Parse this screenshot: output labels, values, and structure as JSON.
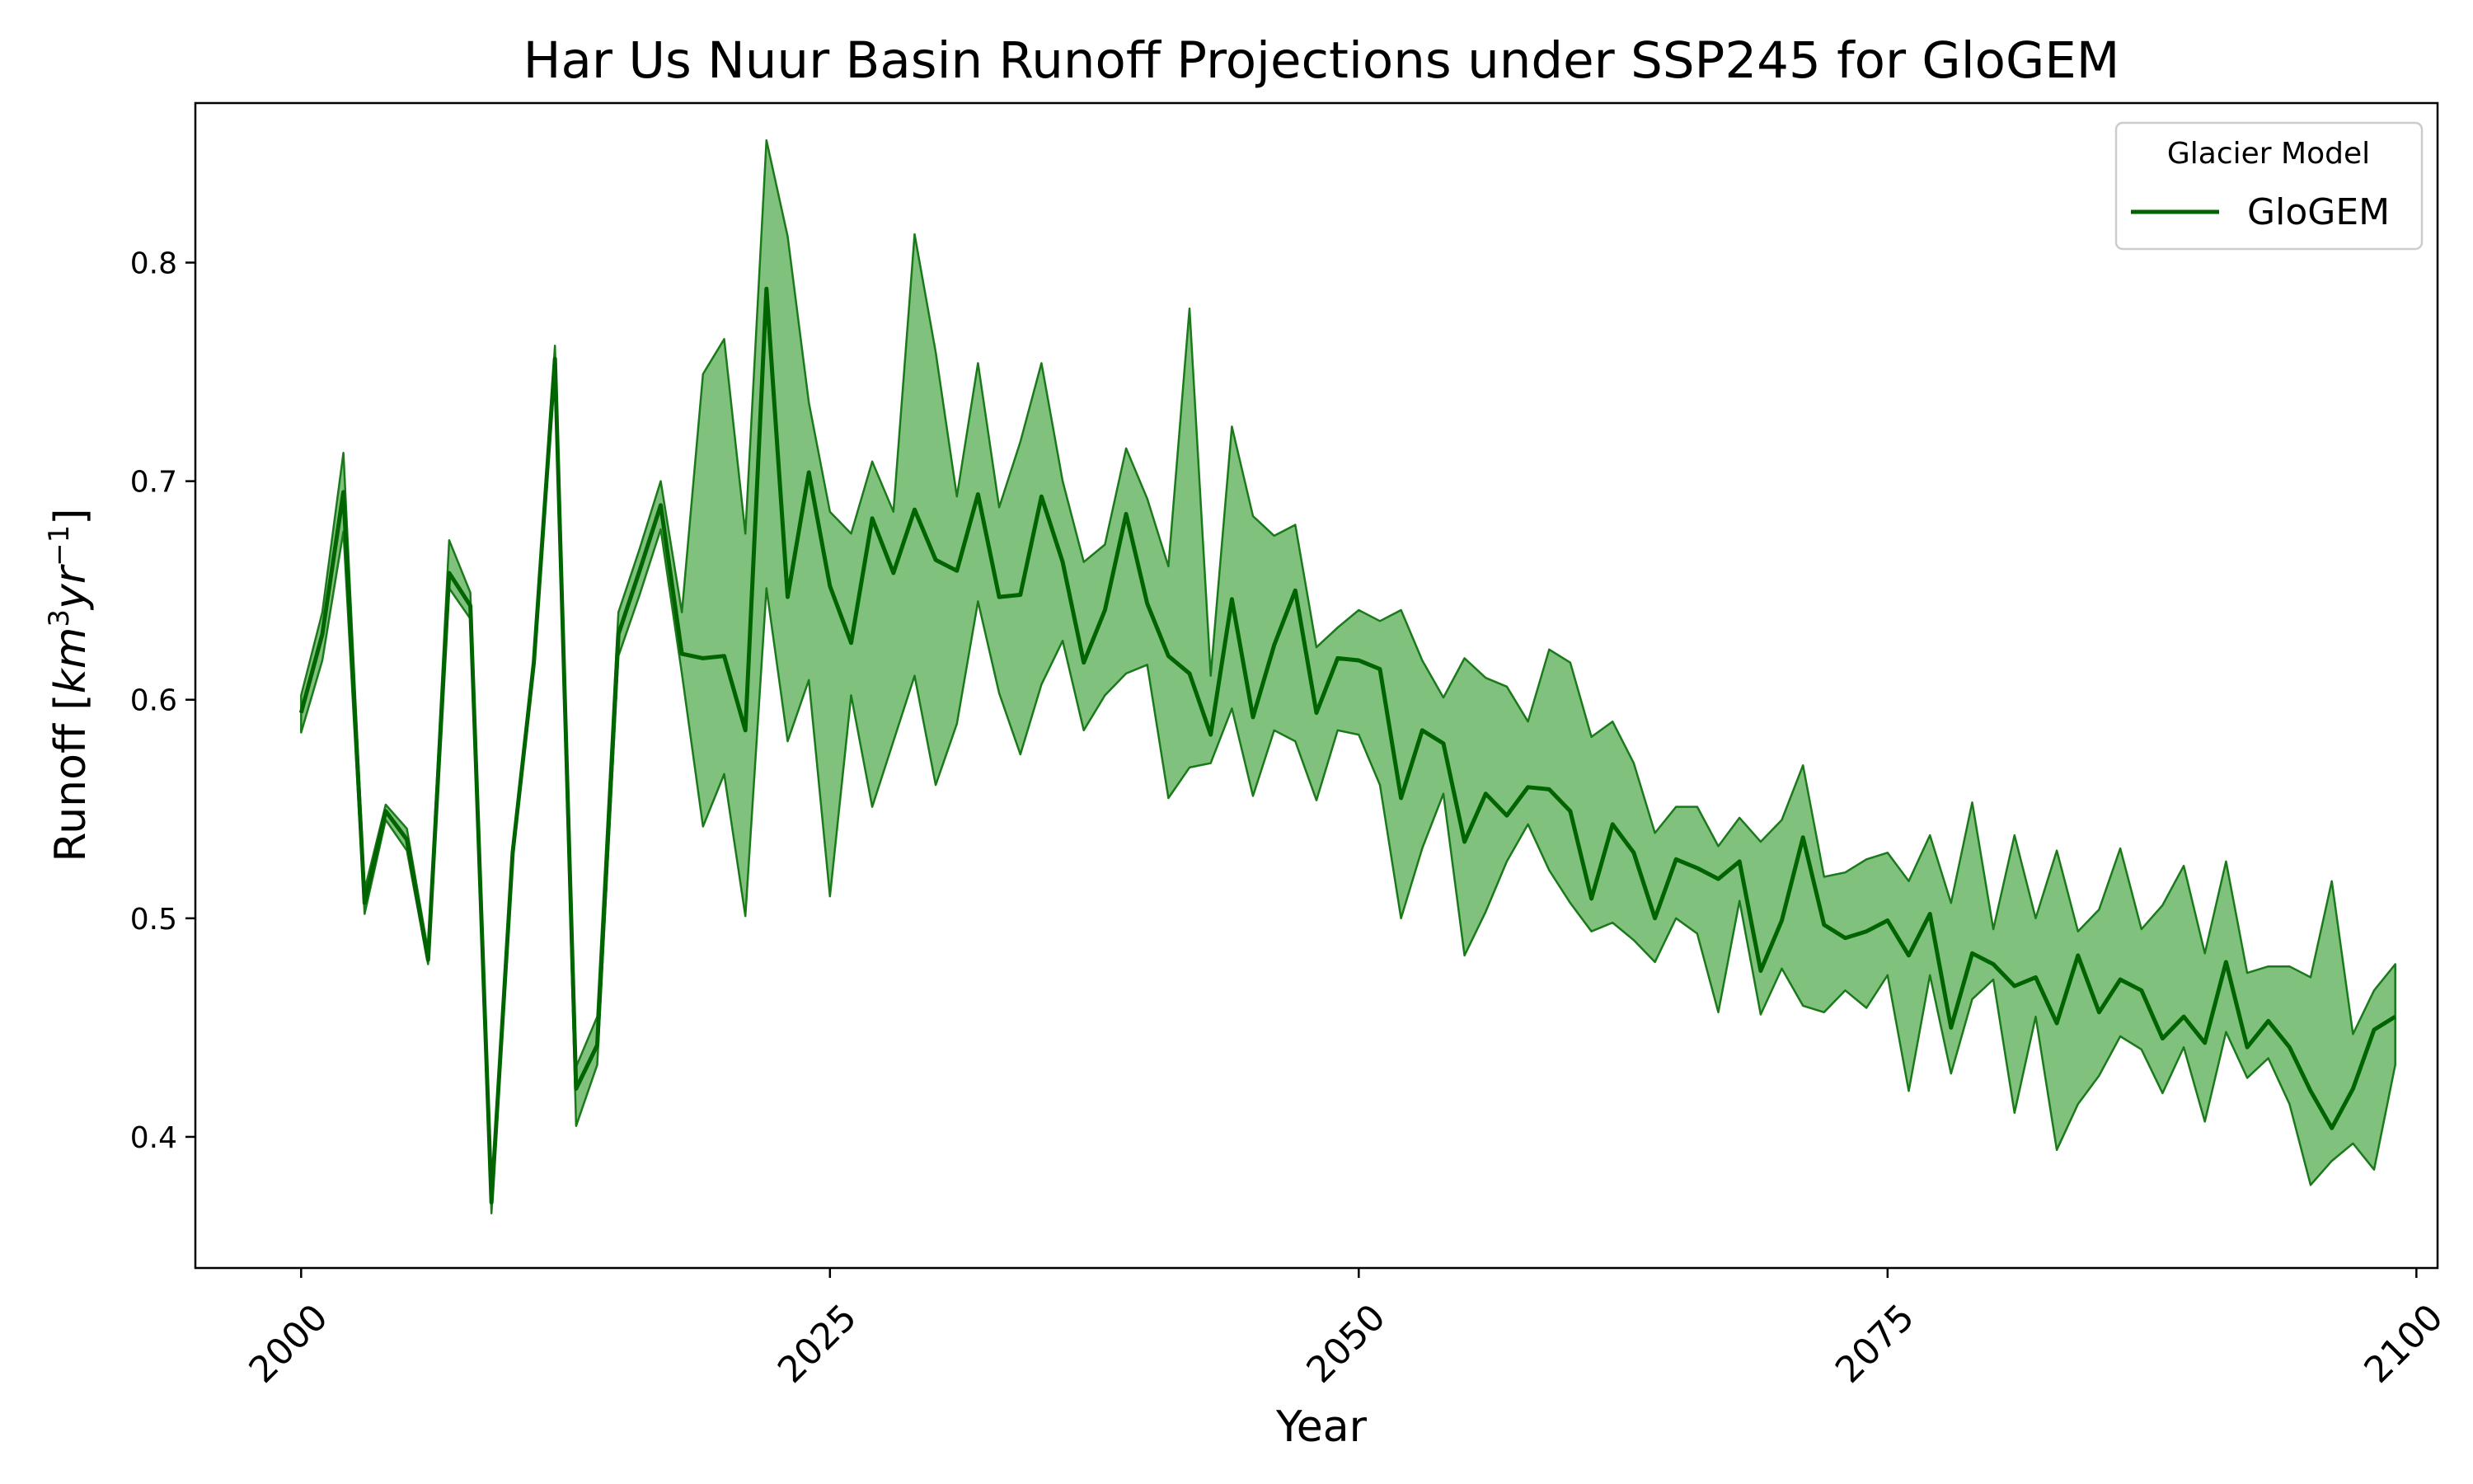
{
  "chart_data": {
    "type": "line",
    "title": "Har Us Nuur Basin Runoff Projections under SSP245 for GloGEM",
    "xlabel": "Year",
    "ylabel": "Runoff [km³yr⁻¹]",
    "ylabel_base": "Runoff [",
    "ylabel_unit": "km",
    "ylabel_unit_exp": "3",
    "ylabel_unit2": "yr",
    "ylabel_unit2_exp": "−1",
    "ylabel_close": "]",
    "xlim": [
      1995,
      2101
    ],
    "ylim": [
      0.34,
      0.873
    ],
    "x_ticks": [
      2000,
      2025,
      2050,
      2075,
      2100
    ],
    "x_tick_labels": [
      "2000",
      "2025",
      "2050",
      "2075",
      "2100"
    ],
    "y_ticks": [
      0.4,
      0.5,
      0.6,
      0.7,
      0.8
    ],
    "y_tick_labels": [
      "0.4",
      "0.5",
      "0.6",
      "0.7",
      "0.8"
    ],
    "grid": false,
    "legend": {
      "title": "Glacier Model",
      "position": "top-right",
      "entries": [
        "GloGEM"
      ]
    },
    "colors": {
      "line": "#006400",
      "band_fill": "#80c17e",
      "band_edge": "#1a7a1a"
    },
    "series": [
      {
        "name": "GloGEM",
        "x": [
          2000,
          2001,
          2002,
          2003,
          2004,
          2005,
          2006,
          2007,
          2008,
          2009,
          2010,
          2011,
          2012,
          2013,
          2014,
          2015,
          2016,
          2017,
          2018,
          2019,
          2020,
          2021,
          2022,
          2023,
          2024,
          2025,
          2026,
          2027,
          2028,
          2029,
          2030,
          2031,
          2032,
          2033,
          2034,
          2035,
          2036,
          2037,
          2038,
          2039,
          2040,
          2041,
          2042,
          2043,
          2044,
          2045,
          2046,
          2047,
          2048,
          2049,
          2050,
          2051,
          2052,
          2053,
          2054,
          2055,
          2056,
          2057,
          2058,
          2059,
          2060,
          2061,
          2062,
          2063,
          2064,
          2065,
          2066,
          2067,
          2068,
          2069,
          2070,
          2071,
          2072,
          2073,
          2074,
          2075,
          2076,
          2077,
          2078,
          2079,
          2080,
          2081,
          2082,
          2083,
          2084,
          2085,
          2086,
          2087,
          2088,
          2089,
          2090,
          2091,
          2092,
          2093,
          2094,
          2095,
          2096,
          2097,
          2098,
          2099
        ],
        "mean": [
          0.594,
          0.63,
          0.695,
          0.507,
          0.549,
          0.536,
          0.481,
          0.658,
          0.643,
          0.37,
          0.53,
          0.617,
          0.756,
          0.422,
          0.442,
          0.63,
          0.659,
          0.689,
          0.621,
          0.619,
          0.62,
          0.586,
          0.788,
          0.647,
          0.704,
          0.652,
          0.626,
          0.683,
          0.658,
          0.687,
          0.664,
          0.659,
          0.694,
          0.647,
          0.648,
          0.693,
          0.663,
          0.617,
          0.641,
          0.685,
          0.644,
          0.62,
          0.612,
          0.584,
          0.646,
          0.592,
          0.625,
          0.65,
          0.594,
          0.619,
          0.618,
          0.614,
          0.555,
          0.586,
          0.58,
          0.535,
          0.557,
          0.547,
          0.56,
          0.559,
          0.549,
          0.509,
          0.543,
          0.53,
          0.5,
          0.527,
          0.523,
          0.518,
          0.526,
          0.476,
          0.499,
          0.537,
          0.497,
          0.491,
          0.494,
          0.499,
          0.483,
          0.502,
          0.45,
          0.484,
          0.479,
          0.469,
          0.473,
          0.452,
          0.483,
          0.457,
          0.472,
          0.467,
          0.445,
          0.455,
          0.443,
          0.48,
          0.441,
          0.453,
          0.441,
          0.421,
          0.404,
          0.422,
          0.449,
          0.455
        ],
        "upper": [
          0.602,
          0.64,
          0.713,
          0.513,
          0.552,
          0.541,
          0.485,
          0.673,
          0.649,
          0.373,
          0.533,
          0.619,
          0.762,
          0.432,
          0.455,
          0.64,
          0.669,
          0.7,
          0.64,
          0.749,
          0.765,
          0.676,
          0.856,
          0.812,
          0.736,
          0.686,
          0.676,
          0.709,
          0.686,
          0.813,
          0.759,
          0.693,
          0.754,
          0.688,
          0.718,
          0.754,
          0.7,
          0.663,
          0.671,
          0.715,
          0.692,
          0.661,
          0.779,
          0.611,
          0.725,
          0.684,
          0.675,
          0.68,
          0.624,
          0.633,
          0.641,
          0.636,
          0.641,
          0.618,
          0.601,
          0.619,
          0.61,
          0.606,
          0.59,
          0.623,
          0.617,
          0.583,
          0.59,
          0.571,
          0.539,
          0.551,
          0.551,
          0.533,
          0.546,
          0.535,
          0.545,
          0.57,
          0.519,
          0.521,
          0.527,
          0.53,
          0.517,
          0.538,
          0.507,
          0.553,
          0.495,
          0.538,
          0.5,
          0.531,
          0.494,
          0.504,
          0.532,
          0.495,
          0.506,
          0.524,
          0.484,
          0.526,
          0.475,
          0.478,
          0.478,
          0.473,
          0.517,
          0.447,
          0.467,
          0.479
        ],
        "lower": [
          0.585,
          0.618,
          0.677,
          0.502,
          0.545,
          0.531,
          0.479,
          0.651,
          0.637,
          0.365,
          0.528,
          0.615,
          0.75,
          0.405,
          0.433,
          0.62,
          0.648,
          0.678,
          0.612,
          0.542,
          0.566,
          0.501,
          0.651,
          0.581,
          0.609,
          0.51,
          0.602,
          0.551,
          0.581,
          0.611,
          0.561,
          0.589,
          0.645,
          0.603,
          0.575,
          0.607,
          0.627,
          0.586,
          0.602,
          0.612,
          0.616,
          0.555,
          0.569,
          0.571,
          0.596,
          0.556,
          0.586,
          0.581,
          0.554,
          0.586,
          0.584,
          0.561,
          0.5,
          0.532,
          0.557,
          0.483,
          0.503,
          0.526,
          0.543,
          0.522,
          0.507,
          0.494,
          0.498,
          0.49,
          0.48,
          0.5,
          0.493,
          0.457,
          0.508,
          0.456,
          0.477,
          0.46,
          0.457,
          0.467,
          0.459,
          0.474,
          0.421,
          0.474,
          0.429,
          0.463,
          0.472,
          0.411,
          0.455,
          0.394,
          0.415,
          0.428,
          0.446,
          0.44,
          0.42,
          0.441,
          0.407,
          0.448,
          0.427,
          0.436,
          0.415,
          0.378,
          0.389,
          0.397,
          0.385,
          0.433
        ]
      }
    ]
  }
}
